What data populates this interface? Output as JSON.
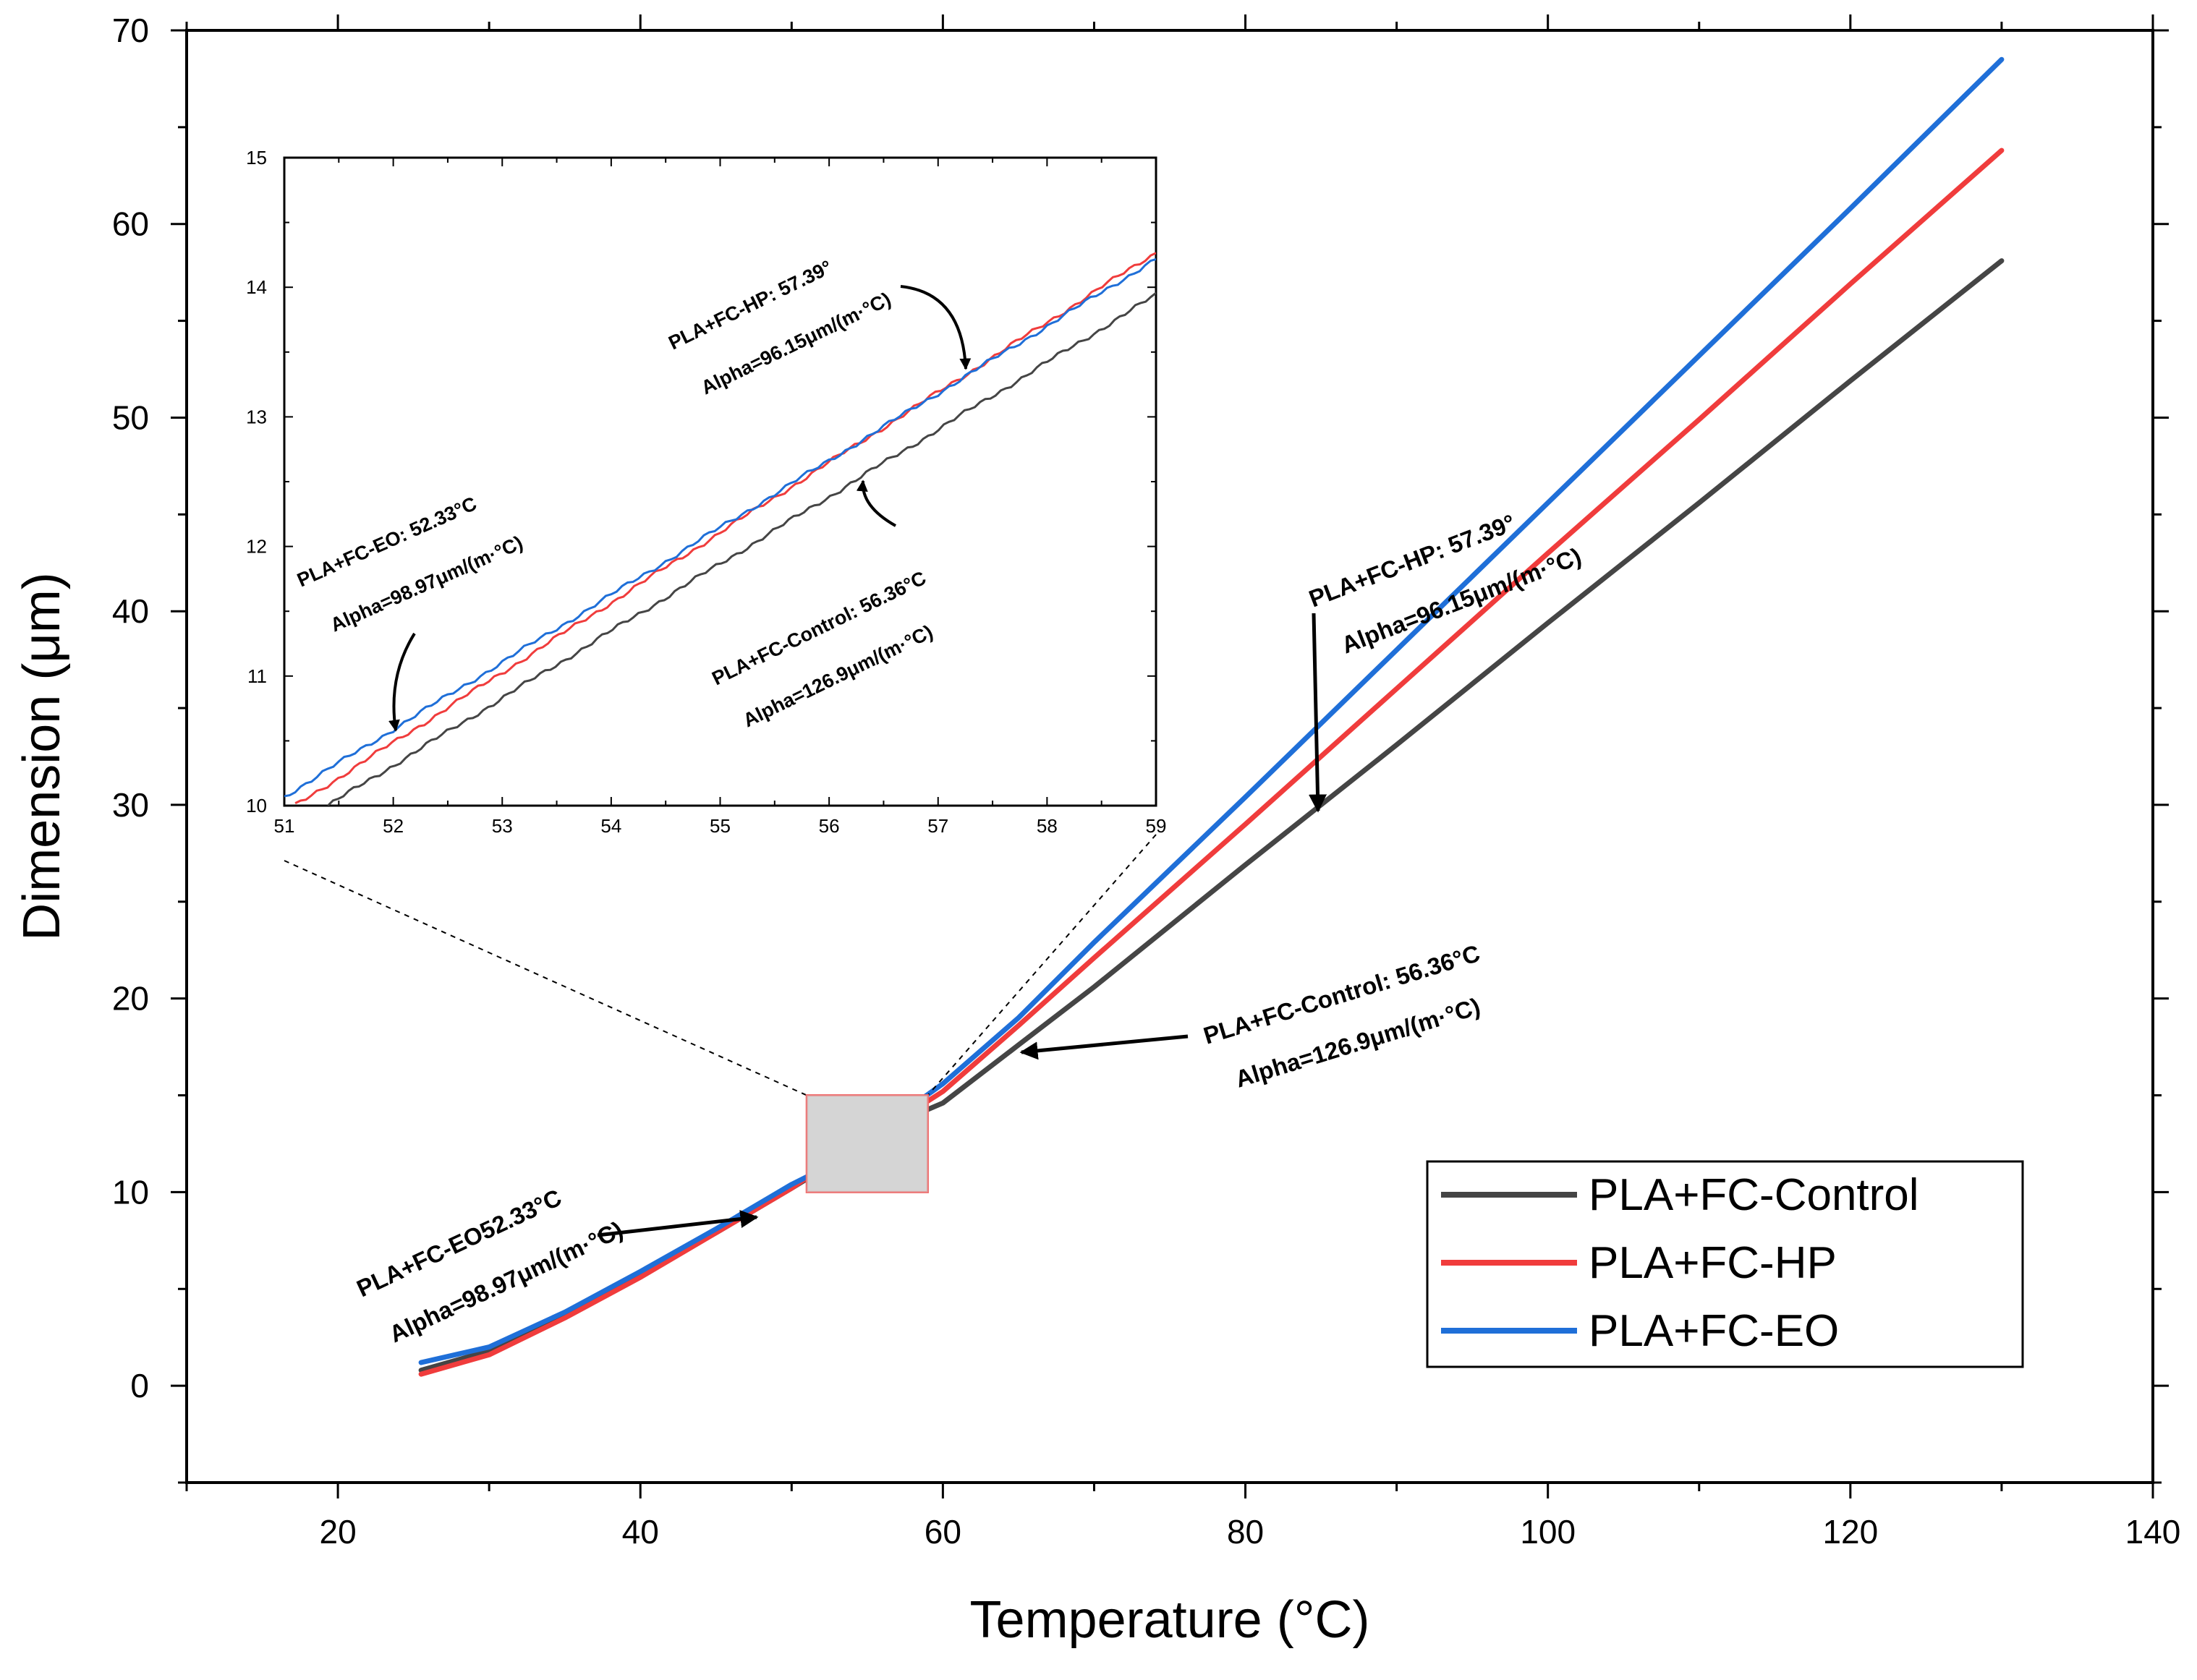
{
  "chart_data": {
    "type": "line",
    "xlabel": "Temperature (°C)",
    "ylabel": "Dimension (μm)",
    "xlim": [
      10,
      140
    ],
    "ylim": [
      -5,
      70
    ],
    "xticks": [
      20,
      40,
      60,
      80,
      100,
      120,
      140
    ],
    "yticks": [
      0,
      10,
      20,
      30,
      40,
      50,
      60,
      70
    ],
    "legend_position": "bottom-right",
    "series": [
      {
        "name": "PLA+FC-Control",
        "color": "#454545",
        "x": [
          25.5,
          30,
          35,
          40,
          45,
          50,
          55,
          57,
          60,
          65,
          70,
          80,
          90,
          100,
          110,
          120,
          130
        ],
        "y": [
          0.8,
          1.8,
          3.6,
          5.7,
          7.9,
          10.2,
          12.6,
          13.6,
          14.6,
          17.6,
          20.6,
          26.9,
          33.1,
          39.4,
          45.6,
          51.9,
          58.1
        ]
      },
      {
        "name": "PLA+FC-HP",
        "color": "#f03c3c",
        "x": [
          25.5,
          30,
          35,
          40,
          45,
          50,
          55,
          57.4,
          60,
          65,
          70,
          80,
          90,
          100,
          110,
          120,
          130
        ],
        "y": [
          0.6,
          1.6,
          3.5,
          5.6,
          7.9,
          10.2,
          12.9,
          13.9,
          15.2,
          18.6,
          22.1,
          29.0,
          36.0,
          43.0,
          49.9,
          56.9,
          63.8
        ]
      },
      {
        "name": "PLA+FC-EO",
        "color": "#1f6fd8",
        "x": [
          25.5,
          30,
          35,
          40,
          45,
          50,
          52.3,
          55,
          60,
          65,
          70,
          80,
          90,
          100,
          110,
          120,
          130
        ],
        "y": [
          1.2,
          2.0,
          3.8,
          5.9,
          8.1,
          10.4,
          11.3,
          12.8,
          15.6,
          19.0,
          22.9,
          30.4,
          38.0,
          45.6,
          53.2,
          60.8,
          68.5
        ]
      }
    ],
    "annotations": {
      "control_line1": "PLA+FC-Control: 56.36°C",
      "control_line2": "Alpha=126.9μm/(m·°C)",
      "hp_line1": "PLA+FC-HP: 57.39°",
      "hp_line2": "Alpha=96.15μm/(m·°C)",
      "eo_line1": "PLA+FC-EO52.33°C",
      "eo_line2": "Alpha=98.97μm/(m·°C)"
    },
    "inset": {
      "type": "line",
      "xlim": [
        51,
        59
      ],
      "ylim": [
        10,
        15
      ],
      "xticks": [
        51,
        52,
        53,
        54,
        55,
        56,
        57,
        58,
        59
      ],
      "yticks": [
        10,
        11,
        12,
        13,
        14,
        15
      ],
      "zoom_region_x": [
        51,
        59
      ],
      "zoom_region_y": [
        10,
        15
      ],
      "series": [
        {
          "name": "PLA+FC-Control",
          "x": [
            51.4,
            59
          ],
          "y": [
            10.0,
            13.94
          ]
        },
        {
          "name": "PLA+FC-HP",
          "x": [
            51.1,
            59
          ],
          "y": [
            10.0,
            14.27
          ]
        },
        {
          "name": "PLA+FC-EO",
          "x": [
            51.0,
            59
          ],
          "y": [
            10.07,
            14.22
          ]
        }
      ],
      "annotations": {
        "eo_line1": "PLA+FC-EO: 52.33°C",
        "eo_line2": "Alpha=98.97μm/(m·°C)",
        "hp_line1": "PLA+FC-HP: 57.39°",
        "hp_line2": "Alpha=96.15μm/(m·°C)",
        "control_line1": "PLA+FC-Control: 56.36°C",
        "control_line2": "Alpha=126.9μm/(m·°C)"
      }
    }
  }
}
